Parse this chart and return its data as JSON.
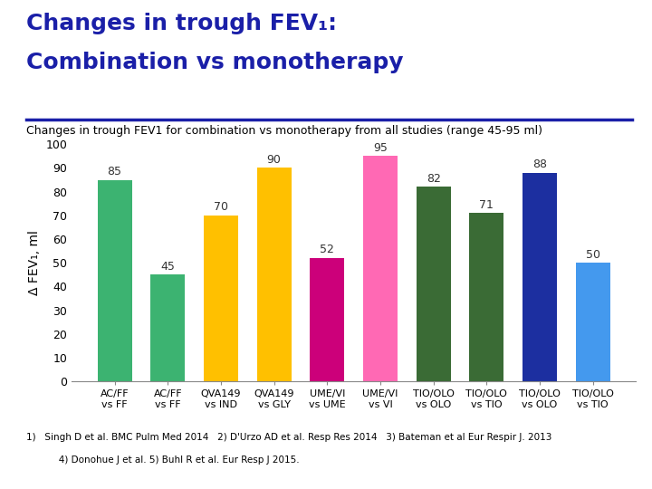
{
  "title_line1": "Changes in trough FEV₁:",
  "title_line2": "Combination vs monotherapy",
  "subtitle": "Changes in trough FEV1 for combination vs monotherapy from all studies (range 45-95 ml)",
  "categories": [
    "AC/FF\nvs FF",
    "AC/FF\nvs FF",
    "QVA149\nvs IND",
    "QVA149\nvs GLY",
    "UME/VI\nvs UME",
    "UME/VI\nvs VI",
    "TIO/OLO\nvs OLO",
    "TIO/OLO\nvs TIO",
    "TIO/OLO\nvs OLO",
    "TIO/OLO\nvs TIO"
  ],
  "values": [
    85,
    45,
    70,
    90,
    52,
    95,
    82,
    71,
    88,
    50
  ],
  "bar_colors": [
    "#3CB371",
    "#3CB371",
    "#FFC000",
    "#FFC000",
    "#CC007A",
    "#FF69B4",
    "#3A6B35",
    "#3A6B35",
    "#1C2FA0",
    "#4499EE"
  ],
  "footnote1": "1)   Singh D et al. BMC Pulm Med 2014   2) D'Urzo AD et al. Resp Res 2014   3) Bateman et al Eur Respir J. 2013",
  "footnote2": "           4) Donohue J et al. 5) Buhl R et al. Eur Resp J 2015.",
  "ylim": [
    0,
    100
  ],
  "yticks": [
    0,
    10,
    20,
    30,
    40,
    50,
    60,
    70,
    80,
    90,
    100
  ],
  "ylabel": "Δ FEV₁, ml",
  "title_color": "#1A1FA8",
  "subtitle_color": "#000000",
  "bar_label_color": "#333333",
  "background_color": "#FFFFFF",
  "title_fontsize": 18,
  "subtitle_fontsize": 9,
  "ylabel_fontsize": 10,
  "tick_fontsize": 9,
  "label_fontsize": 9,
  "xtick_fontsize": 8,
  "separator_color": "#1A1FA8"
}
